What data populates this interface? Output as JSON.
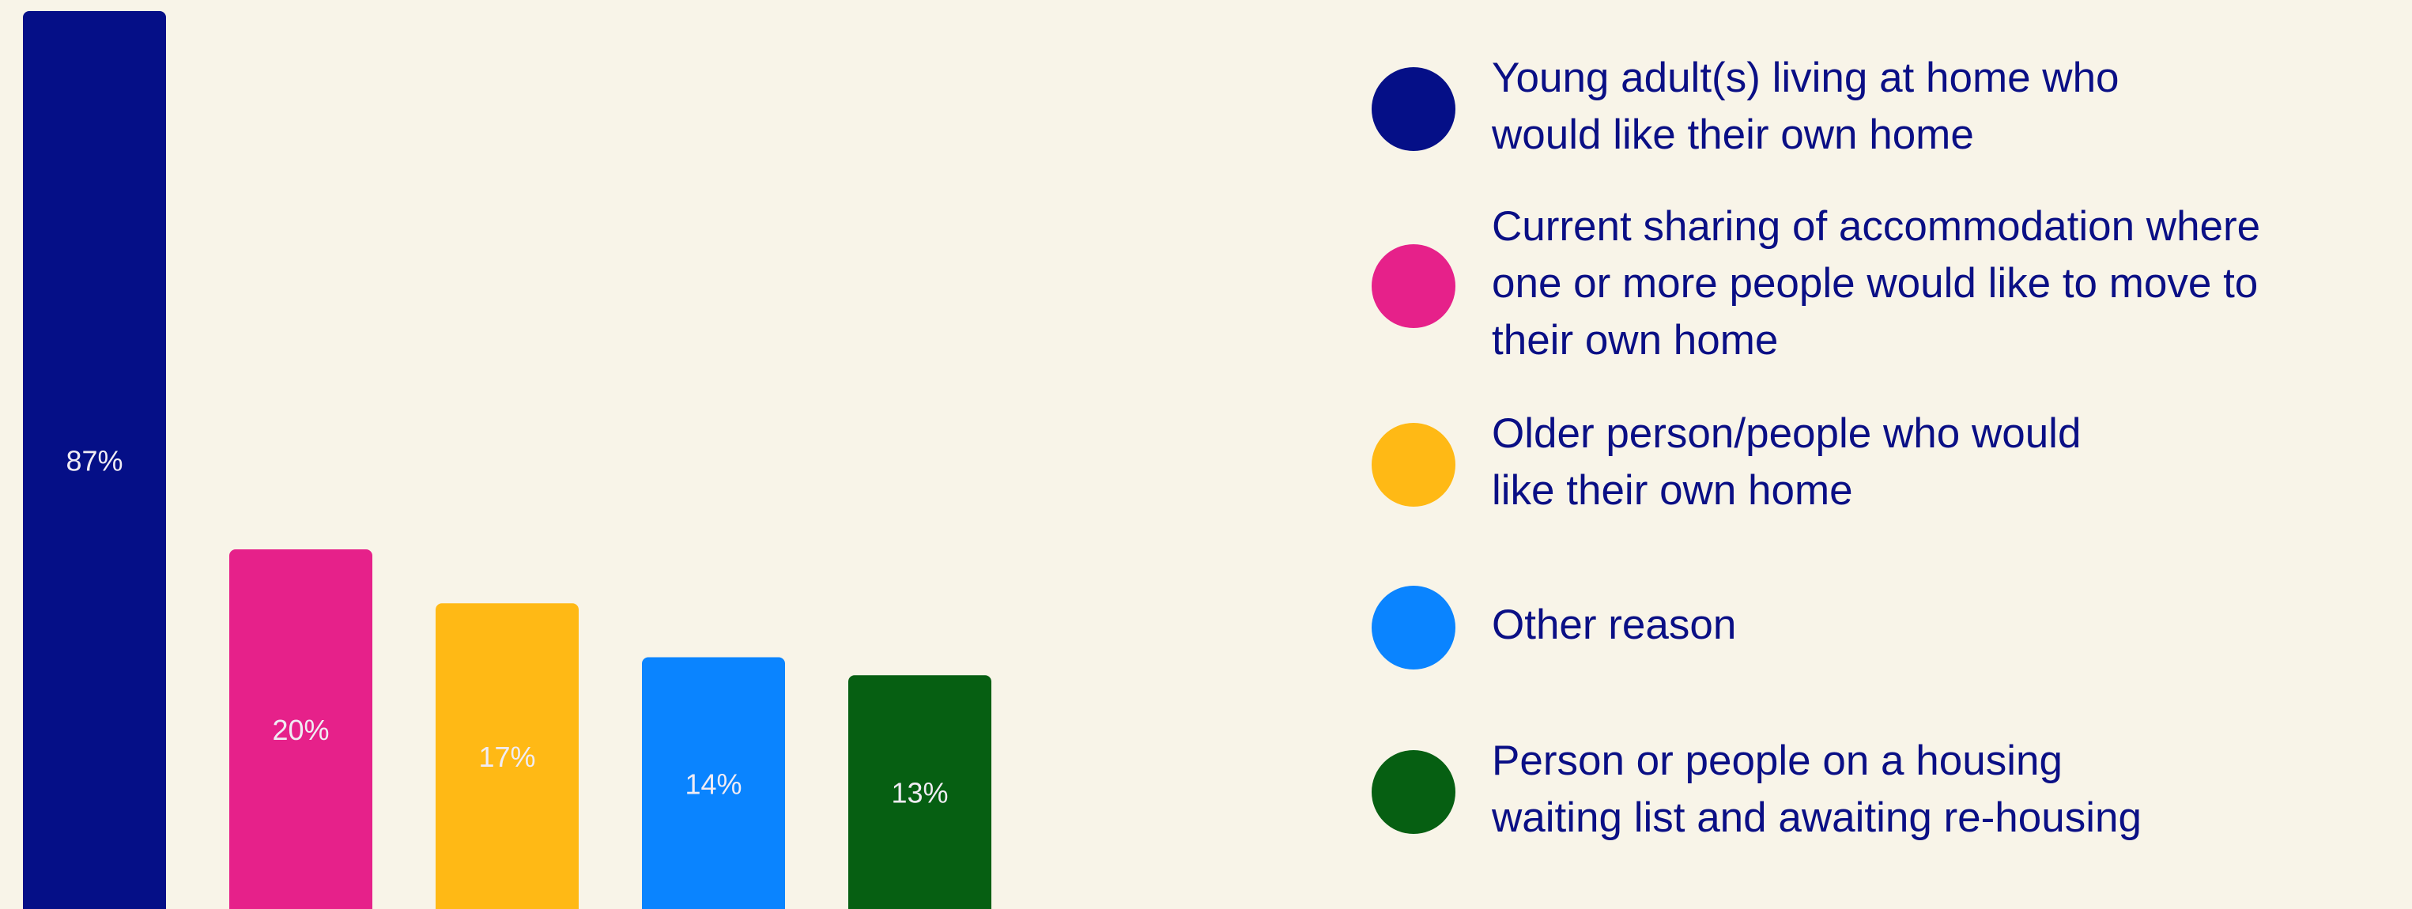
{
  "chart_data": {
    "type": "bar",
    "categories": [
      [
        "Young adult(s) living at home who",
        "would like their own home"
      ],
      [
        "Current sharing of accommodation where",
        "one or more people would like to move to",
        "their own home"
      ],
      [
        "Older person/people who would",
        "like their own home"
      ],
      [
        "Other reason"
      ],
      [
        "Person or people on a housing",
        "waiting list and awaiting re-housing"
      ]
    ],
    "values": [
      87,
      20,
      17,
      14,
      13
    ],
    "value_labels": [
      "87%",
      "20%",
      "17%",
      "14%",
      "13%"
    ],
    "colors": [
      "#050f87",
      "#e6218a",
      "#ffb915",
      "#0a84ff",
      "#065f12"
    ]
  }
}
